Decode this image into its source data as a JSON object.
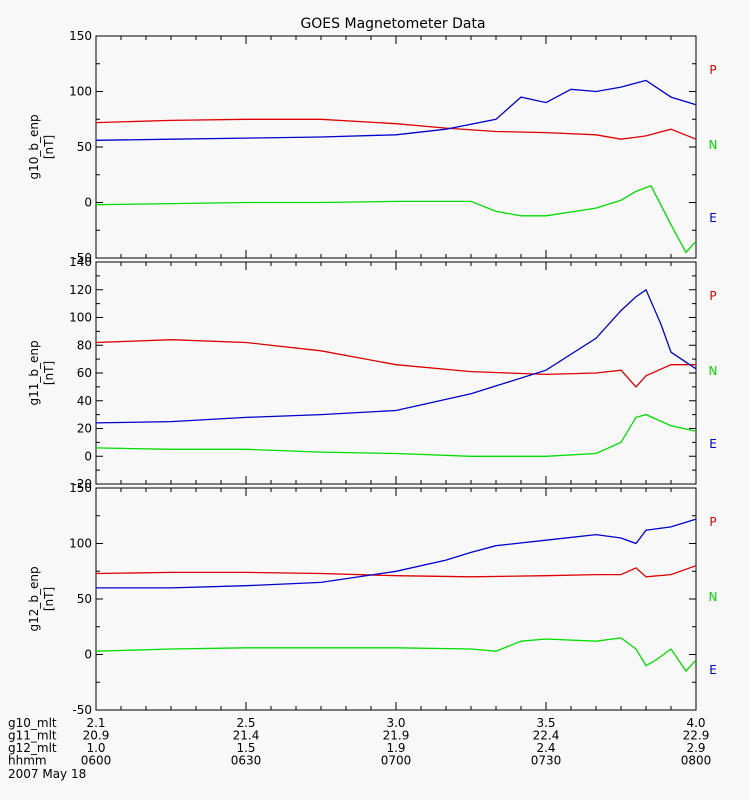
{
  "chart_data": {
    "type": "line",
    "title": "GOES Magnetometer Data",
    "date_label": "2007 May 18",
    "x_ticks": [
      "0600",
      "0630",
      "0700",
      "0730",
      "0800"
    ],
    "x_range_hhmm": [
      "0600",
      "0800"
    ],
    "panels": [
      {
        "ylabel": "g10_b_enp",
        "unit": "[nT]",
        "ylim": [
          -50,
          150
        ],
        "yticks": [
          -50,
          0,
          50,
          100,
          150
        ],
        "series": [
          {
            "name": "P",
            "color": "#dd0000",
            "points": [
              [
                "0600",
                72
              ],
              [
                "0615",
                74
              ],
              [
                "0630",
                75
              ],
              [
                "0645",
                75
              ],
              [
                "0700",
                71
              ],
              [
                "0710",
                67
              ],
              [
                "0720",
                64
              ],
              [
                "0730",
                63
              ],
              [
                "0740",
                61
              ],
              [
                "0745",
                57
              ],
              [
                "0750",
                60
              ],
              [
                "0755",
                66
              ],
              [
                "0800",
                57
              ]
            ]
          },
          {
            "name": "N",
            "color": "#00dd00",
            "points": [
              [
                "0600",
                -2
              ],
              [
                "0615",
                -1
              ],
              [
                "0630",
                0
              ],
              [
                "0645",
                0
              ],
              [
                "0700",
                1
              ],
              [
                "0715",
                1
              ],
              [
                "0720",
                -8
              ],
              [
                "0725",
                -12
              ],
              [
                "0730",
                -12
              ],
              [
                "0740",
                -5
              ],
              [
                "0745",
                2
              ],
              [
                "0748",
                10
              ],
              [
                "0751",
                15
              ],
              [
                "0755",
                -20
              ],
              [
                "0758",
                -45
              ],
              [
                "0800",
                -35
              ]
            ]
          },
          {
            "name": "E",
            "color": "#0000cc",
            "points": [
              [
                "0600",
                56
              ],
              [
                "0615",
                57
              ],
              [
                "0630",
                58
              ],
              [
                "0645",
                59
              ],
              [
                "0700",
                61
              ],
              [
                "0710",
                66
              ],
              [
                "0720",
                75
              ],
              [
                "0725",
                95
              ],
              [
                "0730",
                90
              ],
              [
                "0735",
                102
              ],
              [
                "0740",
                100
              ],
              [
                "0745",
                104
              ],
              [
                "0750",
                110
              ],
              [
                "0755",
                95
              ],
              [
                "0800",
                88
              ]
            ]
          }
        ]
      },
      {
        "ylabel": "g11_b_enp",
        "unit": "[nT]",
        "ylim": [
          -20,
          140
        ],
        "yticks": [
          -20,
          0,
          20,
          40,
          60,
          80,
          100,
          120,
          140
        ],
        "series": [
          {
            "name": "P",
            "color": "#dd0000",
            "points": [
              [
                "0600",
                82
              ],
              [
                "0615",
                84
              ],
              [
                "0630",
                82
              ],
              [
                "0645",
                76
              ],
              [
                "0700",
                66
              ],
              [
                "0715",
                61
              ],
              [
                "0730",
                59
              ],
              [
                "0740",
                60
              ],
              [
                "0745",
                62
              ],
              [
                "0748",
                50
              ],
              [
                "0750",
                58
              ],
              [
                "0755",
                66
              ],
              [
                "0800",
                66
              ]
            ]
          },
          {
            "name": "N",
            "color": "#00dd00",
            "points": [
              [
                "0600",
                6
              ],
              [
                "0615",
                5
              ],
              [
                "0630",
                5
              ],
              [
                "0645",
                3
              ],
              [
                "0700",
                2
              ],
              [
                "0715",
                0
              ],
              [
                "0730",
                0
              ],
              [
                "0740",
                2
              ],
              [
                "0745",
                10
              ],
              [
                "0748",
                28
              ],
              [
                "0750",
                30
              ],
              [
                "0755",
                22
              ],
              [
                "0800",
                18
              ]
            ]
          },
          {
            "name": "E",
            "color": "#0000cc",
            "points": [
              [
                "0600",
                24
              ],
              [
                "0615",
                25
              ],
              [
                "0630",
                28
              ],
              [
                "0645",
                30
              ],
              [
                "0700",
                33
              ],
              [
                "0715",
                45
              ],
              [
                "0730",
                62
              ],
              [
                "0740",
                85
              ],
              [
                "0745",
                105
              ],
              [
                "0748",
                115
              ],
              [
                "0750",
                120
              ],
              [
                "0753",
                95
              ],
              [
                "0755",
                75
              ],
              [
                "0800",
                63
              ]
            ]
          }
        ]
      },
      {
        "ylabel": "g12_b_enp",
        "unit": "[nT]",
        "ylim": [
          -50,
          150
        ],
        "yticks": [
          -50,
          0,
          50,
          100,
          150
        ],
        "series": [
          {
            "name": "P",
            "color": "#dd0000",
            "points": [
              [
                "0600",
                73
              ],
              [
                "0615",
                74
              ],
              [
                "0630",
                74
              ],
              [
                "0645",
                73
              ],
              [
                "0700",
                71
              ],
              [
                "0715",
                70
              ],
              [
                "0730",
                71
              ],
              [
                "0740",
                72
              ],
              [
                "0745",
                72
              ],
              [
                "0748",
                78
              ],
              [
                "0750",
                70
              ],
              [
                "0755",
                72
              ],
              [
                "0800",
                80
              ]
            ]
          },
          {
            "name": "N",
            "color": "#00dd00",
            "points": [
              [
                "0600",
                3
              ],
              [
                "0615",
                5
              ],
              [
                "0630",
                6
              ],
              [
                "0645",
                6
              ],
              [
                "0700",
                6
              ],
              [
                "0715",
                5
              ],
              [
                "0720",
                3
              ],
              [
                "0725",
                12
              ],
              [
                "0730",
                14
              ],
              [
                "0740",
                12
              ],
              [
                "0745",
                15
              ],
              [
                "0748",
                5
              ],
              [
                "0750",
                -10
              ],
              [
                "0752",
                -5
              ],
              [
                "0755",
                5
              ],
              [
                "0758",
                -15
              ],
              [
                "0800",
                -5
              ]
            ]
          },
          {
            "name": "E",
            "color": "#0000cc",
            "points": [
              [
                "0600",
                60
              ],
              [
                "0615",
                60
              ],
              [
                "0630",
                62
              ],
              [
                "0645",
                65
              ],
              [
                "0700",
                75
              ],
              [
                "0710",
                85
              ],
              [
                "0715",
                92
              ],
              [
                "0720",
                98
              ],
              [
                "0730",
                103
              ],
              [
                "0740",
                108
              ],
              [
                "0745",
                105
              ],
              [
                "0748",
                100
              ],
              [
                "0750",
                112
              ],
              [
                "0755",
                115
              ],
              [
                "0800",
                122
              ]
            ]
          }
        ]
      }
    ],
    "footer_rows": [
      {
        "label": "g10_mlt",
        "values": [
          "2.1",
          "2.5",
          "3.0",
          "3.5",
          "4.0"
        ]
      },
      {
        "label": "g11_mlt",
        "values": [
          "20.9",
          "21.4",
          "21.9",
          "22.4",
          "22.9"
        ]
      },
      {
        "label": "g12_mlt",
        "values": [
          "1.0",
          "1.5",
          "1.9",
          "2.4",
          "2.9"
        ]
      },
      {
        "label": "hhmm",
        "values": [
          "0600",
          "0630",
          "0700",
          "0730",
          "0800"
        ]
      }
    ]
  }
}
